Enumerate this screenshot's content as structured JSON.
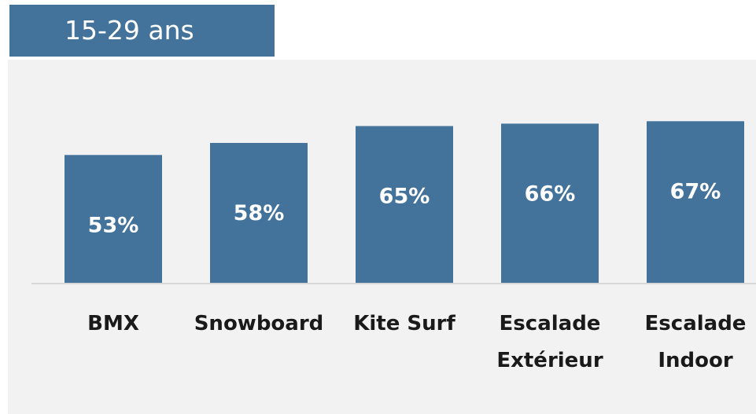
{
  "title": "15-29 ans",
  "colors": {
    "bar": "#43739a",
    "title_bg": "#43739a",
    "panel_bg": "#f2f2f2",
    "axis": "#d9d9d9",
    "label_text": "#1a1a1a",
    "value_text": "#ffffff"
  },
  "chart_data": {
    "type": "bar",
    "title": "15-29 ans",
    "categories": [
      [
        "BMX"
      ],
      [
        "Snowboard"
      ],
      [
        "Kite Surf"
      ],
      [
        "Escalade",
        "Extérieur"
      ],
      [
        "Escalade",
        "Indoor"
      ]
    ],
    "values": [
      53,
      58,
      65,
      66,
      67
    ],
    "value_labels": [
      "53%",
      "58%",
      "65%",
      "66%",
      "67%"
    ],
    "unit": "%",
    "ylim": [
      0,
      100
    ],
    "grid": false,
    "legend": "none"
  }
}
